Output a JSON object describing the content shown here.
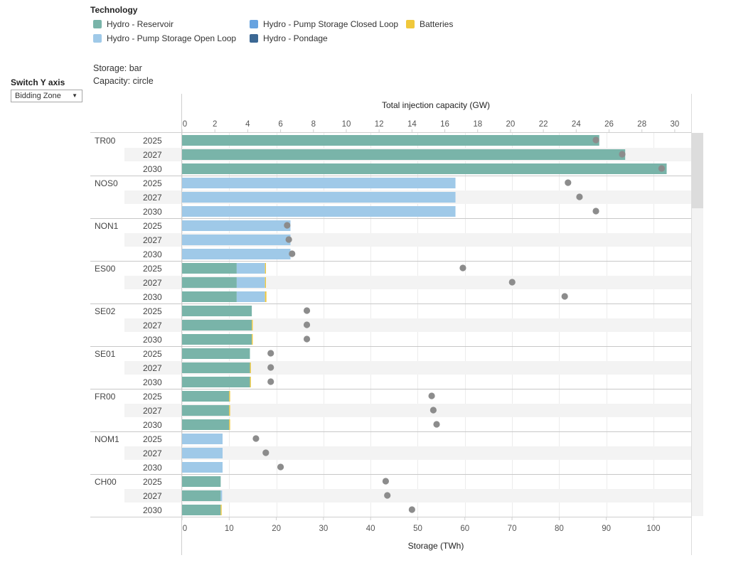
{
  "legend": {
    "title": "Technology",
    "items": [
      {
        "label": "Hydro - Reservoir",
        "color": "#79b4a9",
        "icon": "square-swatch"
      },
      {
        "label": "Hydro - Pump Storage Closed Loop",
        "color": "#67a3e0",
        "icon": "square-swatch"
      },
      {
        "label": "Batteries",
        "color": "#f0c83b",
        "icon": "square-swatch"
      },
      {
        "label": "Hydro - Pump Storage Open Loop",
        "color": "#9fc9e8",
        "icon": "square-swatch"
      },
      {
        "label": "Hydro - Pondage",
        "color": "#3c6894",
        "icon": "square-swatch"
      }
    ]
  },
  "notes": {
    "storage": "Storage: bar",
    "capacity": "Capacity: circle"
  },
  "control": {
    "title": "Switch Y axis",
    "selected": "Bidding Zone",
    "caret_icon": "chevron-down-icon"
  },
  "chart_data": {
    "type": "bar",
    "top_axis": {
      "label": "Total injection capacity (GW)",
      "range": [
        0,
        31
      ],
      "ticks": [
        0,
        2,
        4,
        6,
        8,
        10,
        12,
        14,
        16,
        18,
        20,
        22,
        24,
        26,
        28,
        30
      ]
    },
    "bottom_axis": {
      "label": "Storage (TWh)",
      "range": [
        0,
        108
      ],
      "ticks": [
        0,
        10,
        20,
        30,
        40,
        50,
        60,
        70,
        80,
        90,
        100
      ]
    },
    "series": [
      {
        "name": "Hydro - Reservoir",
        "color": "#79b4a9"
      },
      {
        "name": "Hydro - Pump Storage Open Loop",
        "color": "#9fc9e8"
      },
      {
        "name": "Batteries",
        "color": "#f0c83b"
      }
    ],
    "capacity_marker_color": "#8c8c8c",
    "groups": [
      {
        "zone": "TR00",
        "rows": [
          {
            "year": "2025",
            "storage": [
              88.5,
              0,
              0
            ],
            "capacity": 25.2
          },
          {
            "year": "2027",
            "storage": [
              94.0,
              0,
              0
            ],
            "capacity": 26.8
          },
          {
            "year": "2030",
            "storage": [
              102.8,
              0,
              0
            ],
            "capacity": 29.2
          }
        ]
      },
      {
        "zone": "NOS0",
        "rows": [
          {
            "year": "2025",
            "storage": [
              0,
              58.0,
              0
            ],
            "capacity": 23.5
          },
          {
            "year": "2027",
            "storage": [
              0,
              58.0,
              0
            ],
            "capacity": 24.2
          },
          {
            "year": "2030",
            "storage": [
              0,
              58.0,
              0
            ],
            "capacity": 25.2
          }
        ]
      },
      {
        "zone": "NON1",
        "rows": [
          {
            "year": "2025",
            "storage": [
              0,
              23.0,
              0
            ],
            "capacity": 6.4
          },
          {
            "year": "2027",
            "storage": [
              0,
              23.0,
              0
            ],
            "capacity": 6.5
          },
          {
            "year": "2030",
            "storage": [
              0,
              23.0,
              0
            ],
            "capacity": 6.7
          }
        ]
      },
      {
        "zone": "ES00",
        "rows": [
          {
            "year": "2025",
            "storage": [
              11.6,
              6.0,
              0.2
            ],
            "capacity": 17.1
          },
          {
            "year": "2027",
            "storage": [
              11.6,
              6.0,
              0.2
            ],
            "capacity": 20.1
          },
          {
            "year": "2030",
            "storage": [
              11.6,
              6.0,
              0.3
            ],
            "capacity": 23.3
          }
        ]
      },
      {
        "zone": "SE02",
        "rows": [
          {
            "year": "2025",
            "storage": [
              14.8,
              0,
              0
            ],
            "capacity": 7.6
          },
          {
            "year": "2027",
            "storage": [
              14.8,
              0,
              0.2
            ],
            "capacity": 7.6
          },
          {
            "year": "2030",
            "storage": [
              14.8,
              0,
              0.2
            ],
            "capacity": 7.6
          }
        ]
      },
      {
        "zone": "SE01",
        "rows": [
          {
            "year": "2025",
            "storage": [
              14.4,
              0,
              0
            ],
            "capacity": 5.4
          },
          {
            "year": "2027",
            "storage": [
              14.4,
              0,
              0.2
            ],
            "capacity": 5.4
          },
          {
            "year": "2030",
            "storage": [
              14.4,
              0,
              0.2
            ],
            "capacity": 5.4
          }
        ]
      },
      {
        "zone": "FR00",
        "rows": [
          {
            "year": "2025",
            "storage": [
              10.0,
              0,
              0.2
            ],
            "capacity": 15.2
          },
          {
            "year": "2027",
            "storage": [
              10.0,
              0,
              0.2
            ],
            "capacity": 15.3
          },
          {
            "year": "2030",
            "storage": [
              10.0,
              0,
              0.2
            ],
            "capacity": 15.5
          }
        ]
      },
      {
        "zone": "NOM1",
        "rows": [
          {
            "year": "2025",
            "storage": [
              0,
              8.6,
              0
            ],
            "capacity": 4.5
          },
          {
            "year": "2027",
            "storage": [
              0,
              8.6,
              0
            ],
            "capacity": 5.1
          },
          {
            "year": "2030",
            "storage": [
              0,
              8.6,
              0
            ],
            "capacity": 6.0
          }
        ]
      },
      {
        "zone": "CH00",
        "rows": [
          {
            "year": "2025",
            "storage": [
              8.2,
              0,
              0
            ],
            "capacity": 12.4
          },
          {
            "year": "2027",
            "storage": [
              8.2,
              0.3,
              0
            ],
            "capacity": 12.5
          },
          {
            "year": "2030",
            "storage": [
              8.2,
              0,
              0.2
            ],
            "capacity": 14.0
          }
        ]
      }
    ]
  }
}
